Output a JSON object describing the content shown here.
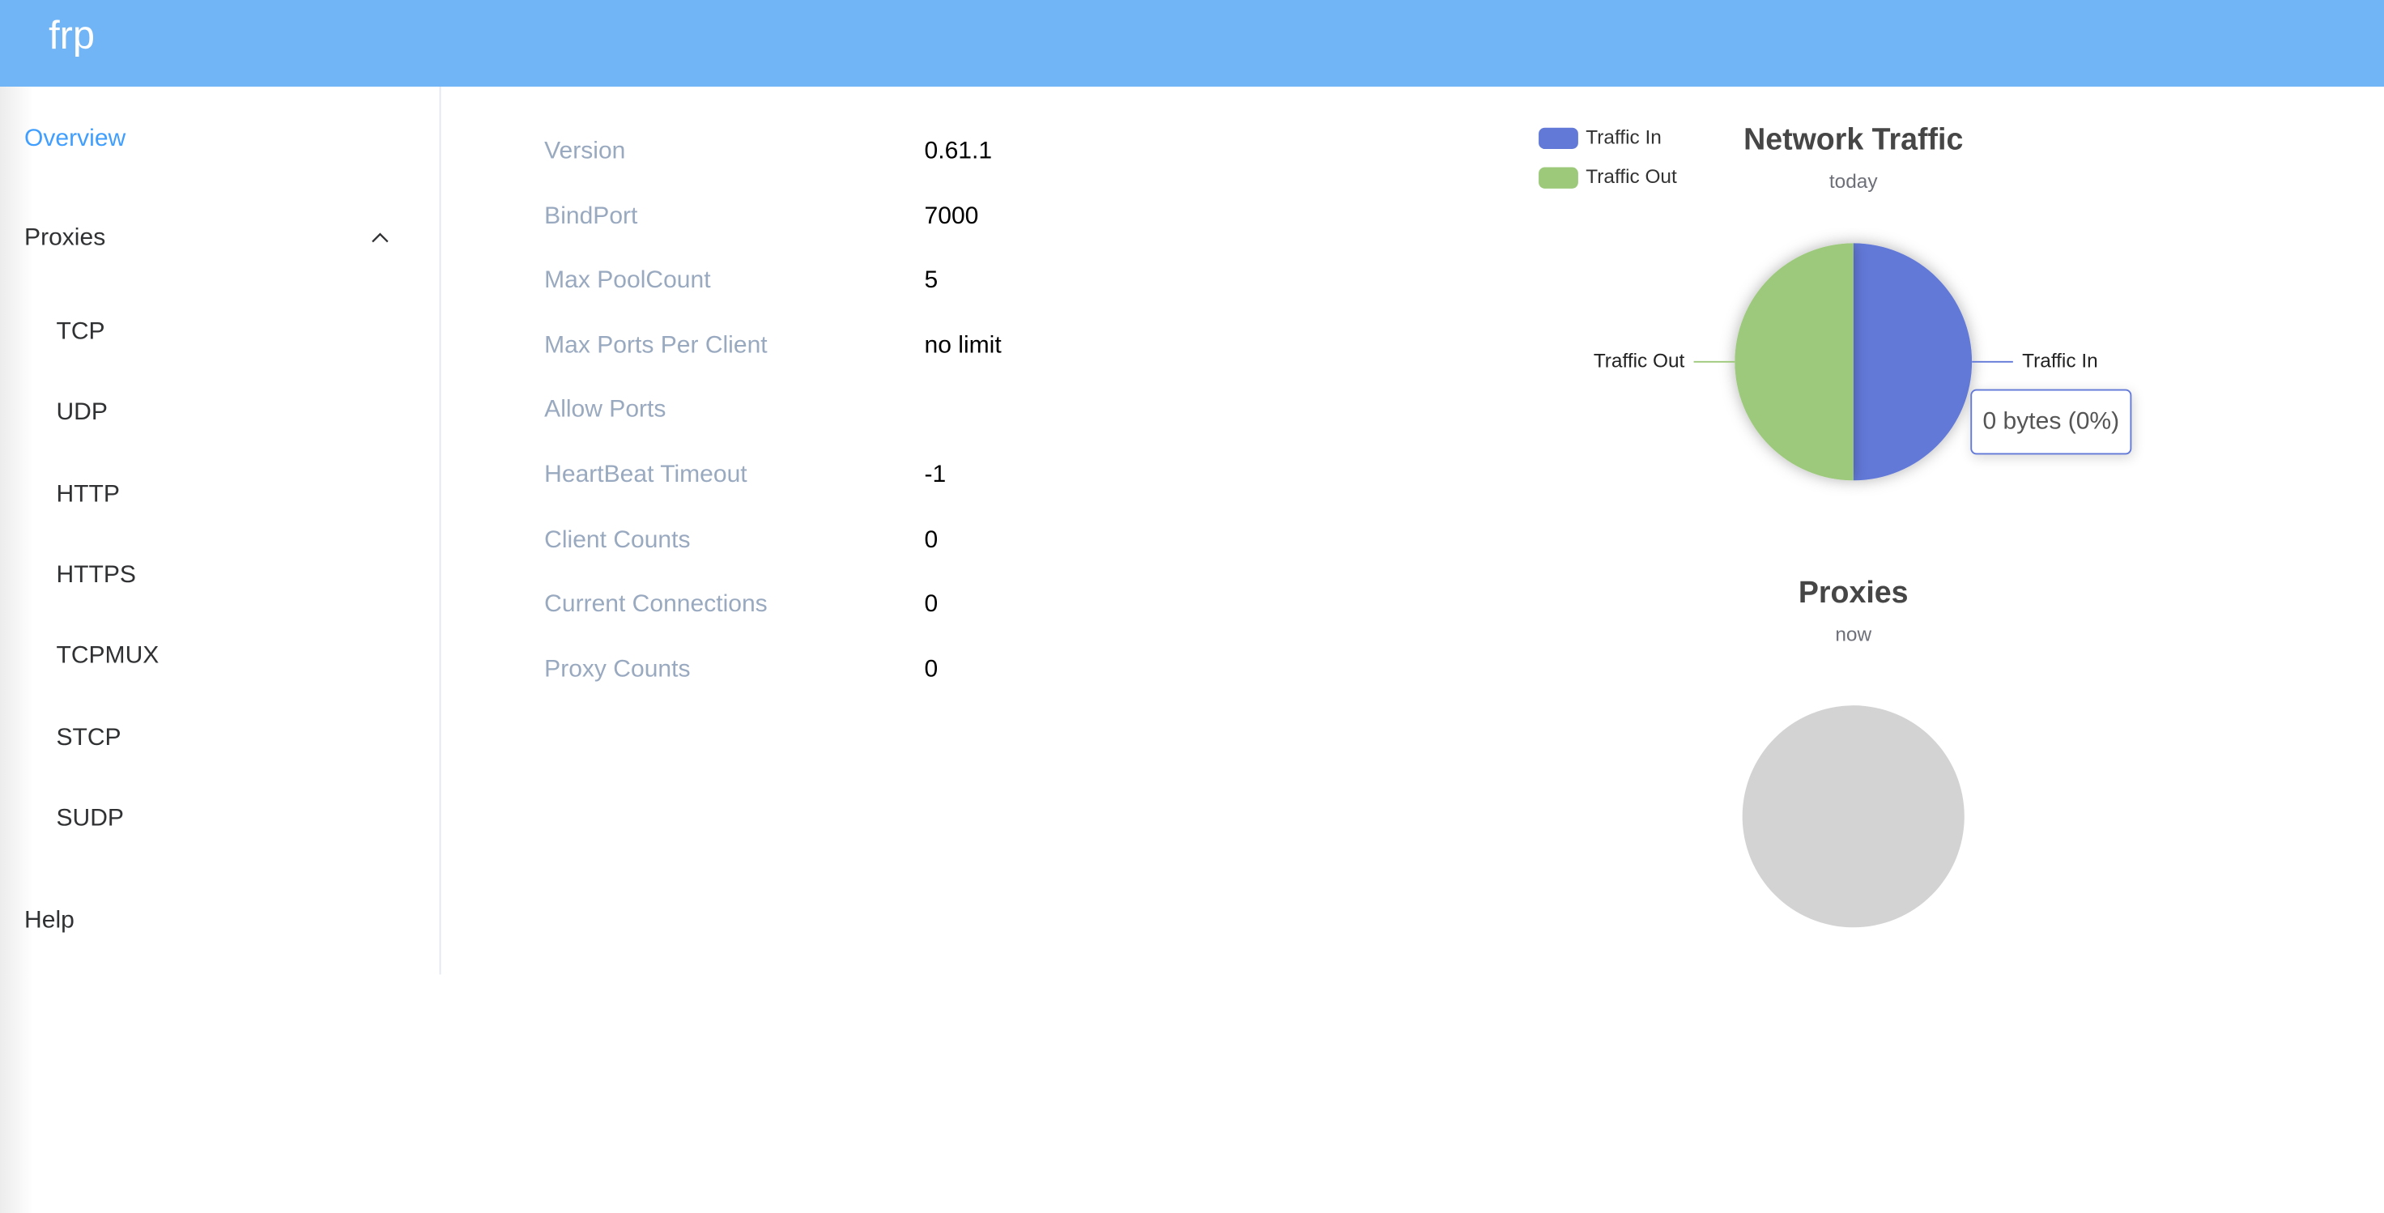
{
  "header": {
    "title": "frp"
  },
  "nav": {
    "overview": "Overview",
    "proxies": {
      "label": "Proxies",
      "items": [
        "TCP",
        "UDP",
        "HTTP",
        "HTTPS",
        "TCPMUX",
        "STCP",
        "SUDP"
      ]
    },
    "help": "Help"
  },
  "info": {
    "rows": [
      {
        "label": "Version",
        "value": "0.61.1"
      },
      {
        "label": "BindPort",
        "value": "7000"
      },
      {
        "label": "Max PoolCount",
        "value": "5"
      },
      {
        "label": "Max Ports Per Client",
        "value": "no limit"
      },
      {
        "label": "Allow Ports"
      },
      {
        "label": "HeartBeat Timeout",
        "value": "-1"
      },
      {
        "label": "Client Counts",
        "value": "0"
      },
      {
        "label": "Current Connections",
        "value": "0"
      },
      {
        "label": "Proxy Counts",
        "value": "0"
      }
    ]
  },
  "chart_data": [
    {
      "type": "pie",
      "title": "Network Traffic",
      "subtitle": "today",
      "categories": [
        "Traffic In",
        "Traffic Out"
      ],
      "values": [
        0,
        0
      ],
      "colors": [
        "#6279d8",
        "#9dc97b"
      ],
      "tooltip": "0 bytes (0%)"
    },
    {
      "type": "pie",
      "title": "Proxies",
      "subtitle": "now"
    }
  ]
}
